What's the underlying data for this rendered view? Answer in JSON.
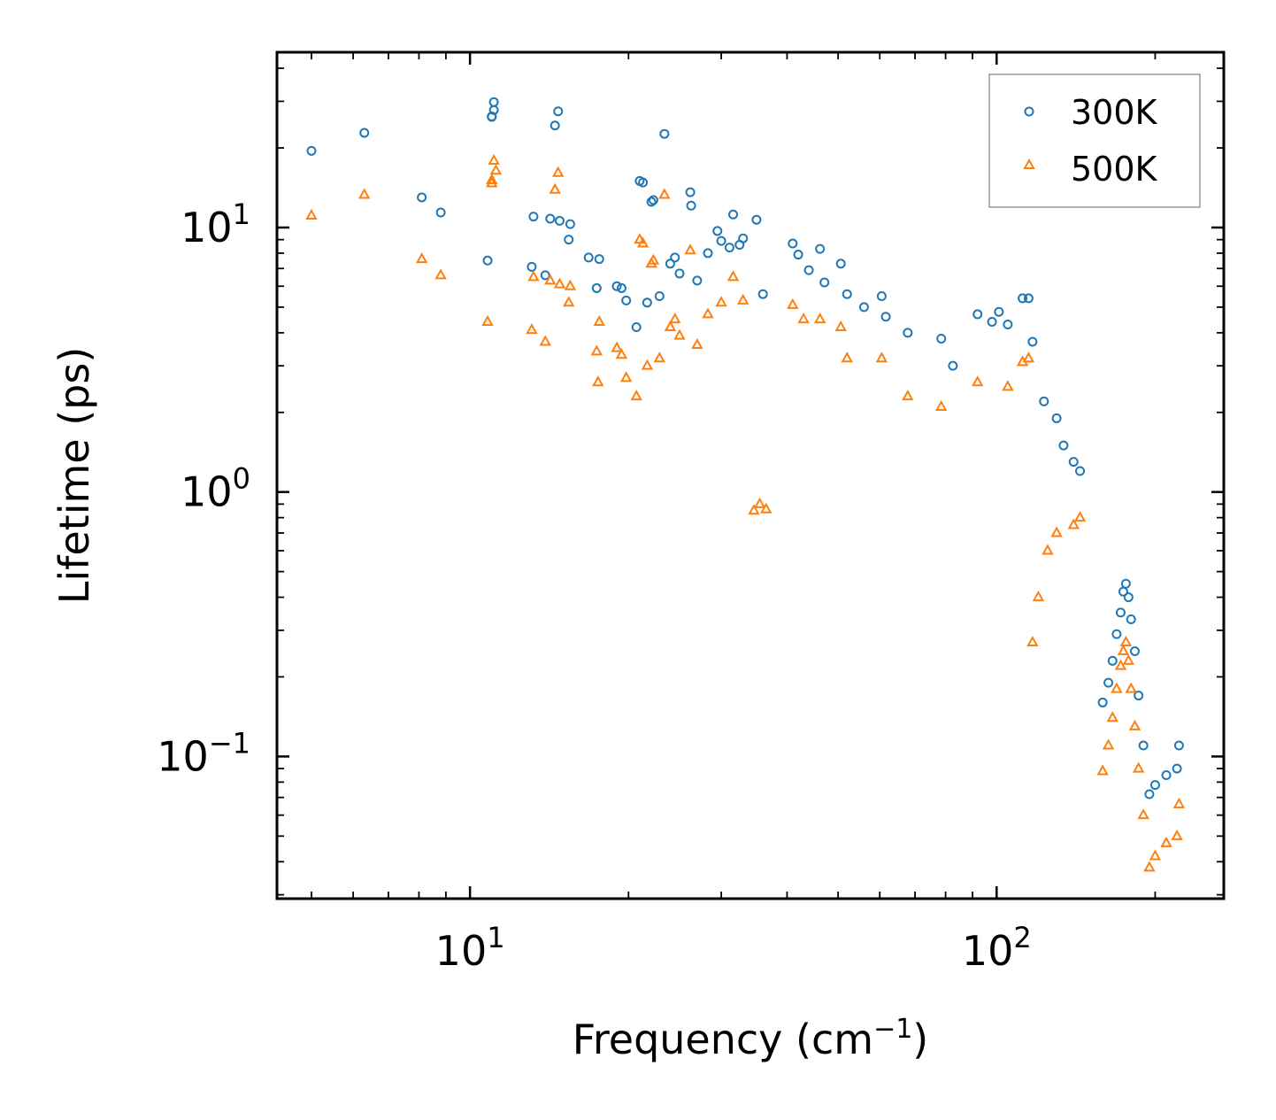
{
  "chart_data": {
    "type": "scatter",
    "xscale": "log",
    "yscale": "log",
    "xlabel": "Frequency (cm",
    "xlabel_sup": "−1",
    "xlabel_tail": ")",
    "ylabel": "Lifetime (ps)",
    "xlim": [
      4.3,
      270
    ],
    "ylim": [
      0.029,
      46
    ],
    "x_ticks": [
      {
        "value": 10,
        "base": "10",
        "exp": "1"
      },
      {
        "value": 100,
        "base": "10",
        "exp": "2"
      }
    ],
    "y_ticks": [
      {
        "value": 10,
        "base": "10",
        "exp": "1"
      },
      {
        "value": 1,
        "base": "10",
        "exp": "0"
      },
      {
        "value": 0.1,
        "base": "10",
        "exp": "−1"
      }
    ],
    "legend_position": "top-right",
    "series": [
      {
        "name": "300K",
        "marker": "circle",
        "color": "#1f77b4",
        "points": [
          [
            5.0,
            19.5
          ],
          [
            6.3,
            22.8
          ],
          [
            8.1,
            13.0
          ],
          [
            8.8,
            11.4
          ],
          [
            10.8,
            7.5
          ],
          [
            11.0,
            26.2
          ],
          [
            11.1,
            29.8
          ],
          [
            11.1,
            27.8
          ],
          [
            11.0,
            26.3
          ],
          [
            13.1,
            7.1
          ],
          [
            13.2,
            11.0
          ],
          [
            13.9,
            6.6
          ],
          [
            14.2,
            10.8
          ],
          [
            14.5,
            24.3
          ],
          [
            14.7,
            27.5
          ],
          [
            14.8,
            10.6
          ],
          [
            15.4,
            9.0
          ],
          [
            15.5,
            10.3
          ],
          [
            16.8,
            7.7
          ],
          [
            17.4,
            5.9
          ],
          [
            17.6,
            7.6
          ],
          [
            19.0,
            6.0
          ],
          [
            19.4,
            5.9
          ],
          [
            19.8,
            5.3
          ],
          [
            20.7,
            4.2
          ],
          [
            21.0,
            15.0
          ],
          [
            21.3,
            14.8
          ],
          [
            21.7,
            5.2
          ],
          [
            22.1,
            12.5
          ],
          [
            22.3,
            12.7
          ],
          [
            22.9,
            5.5
          ],
          [
            23.4,
            22.6
          ],
          [
            24.0,
            7.3
          ],
          [
            24.5,
            7.7
          ],
          [
            25.0,
            6.7
          ],
          [
            26.2,
            13.6
          ],
          [
            26.3,
            12.1
          ],
          [
            27.0,
            6.3
          ],
          [
            28.3,
            8.0
          ],
          [
            29.5,
            9.7
          ],
          [
            30.0,
            8.9
          ],
          [
            31.1,
            8.4
          ],
          [
            31.6,
            11.2
          ],
          [
            32.5,
            8.6
          ],
          [
            33.0,
            9.1
          ],
          [
            35.0,
            10.7
          ],
          [
            36.0,
            5.6
          ],
          [
            41.0,
            8.7
          ],
          [
            42.0,
            7.9
          ],
          [
            44.0,
            6.9
          ],
          [
            46.2,
            8.3
          ],
          [
            47.1,
            6.2
          ],
          [
            50.6,
            7.3
          ],
          [
            52.0,
            5.6
          ],
          [
            56.0,
            5.0
          ],
          [
            60.5,
            5.5
          ],
          [
            61.6,
            4.6
          ],
          [
            67.8,
            4.0
          ],
          [
            78.5,
            3.8
          ],
          [
            82.6,
            3.0
          ],
          [
            92.0,
            4.7
          ],
          [
            98.0,
            4.4
          ],
          [
            101.0,
            4.8
          ],
          [
            105.0,
            4.3
          ],
          [
            112.0,
            5.4
          ],
          [
            115.0,
            5.4
          ],
          [
            117.0,
            3.7
          ],
          [
            123.0,
            2.2
          ],
          [
            130.0,
            1.9
          ],
          [
            134.0,
            1.5
          ],
          [
            140.0,
            1.3
          ],
          [
            144.0,
            1.2
          ],
          [
            159.0,
            0.16
          ],
          [
            163.0,
            0.19
          ],
          [
            166.0,
            0.23
          ],
          [
            169.0,
            0.29
          ],
          [
            172.0,
            0.35
          ],
          [
            174.0,
            0.42
          ],
          [
            176.0,
            0.45
          ],
          [
            178.0,
            0.4
          ],
          [
            180.0,
            0.33
          ],
          [
            183.0,
            0.25
          ],
          [
            186.0,
            0.17
          ],
          [
            190.0,
            0.11
          ],
          [
            195.0,
            0.072
          ],
          [
            200.0,
            0.078
          ],
          [
            210.0,
            0.085
          ],
          [
            220.0,
            0.09
          ],
          [
            222.0,
            0.11
          ]
        ]
      },
      {
        "name": "500K",
        "marker": "triangle",
        "color": "#ff7f0e",
        "points": [
          [
            5.0,
            11.1
          ],
          [
            6.3,
            13.3
          ],
          [
            8.1,
            7.6
          ],
          [
            8.8,
            6.6
          ],
          [
            10.8,
            4.4
          ],
          [
            11.0,
            15.1
          ],
          [
            11.1,
            17.9
          ],
          [
            11.2,
            16.4
          ],
          [
            11.0,
            14.7
          ],
          [
            13.1,
            4.1
          ],
          [
            13.2,
            6.5
          ],
          [
            13.9,
            3.7
          ],
          [
            14.2,
            6.3
          ],
          [
            14.5,
            13.9
          ],
          [
            14.7,
            16.1
          ],
          [
            14.8,
            6.1
          ],
          [
            15.4,
            5.2
          ],
          [
            15.5,
            6.0
          ],
          [
            17.4,
            3.4
          ],
          [
            17.6,
            4.4
          ],
          [
            17.5,
            2.6
          ],
          [
            19.0,
            3.5
          ],
          [
            19.4,
            3.3
          ],
          [
            19.8,
            2.7
          ],
          [
            20.7,
            2.3
          ],
          [
            21.0,
            9.0
          ],
          [
            21.3,
            8.7
          ],
          [
            21.7,
            3.0
          ],
          [
            22.1,
            7.3
          ],
          [
            22.3,
            7.5
          ],
          [
            22.9,
            3.2
          ],
          [
            23.4,
            13.3
          ],
          [
            24.0,
            4.2
          ],
          [
            24.5,
            4.5
          ],
          [
            25.0,
            3.9
          ],
          [
            26.2,
            8.2
          ],
          [
            27.0,
            3.6
          ],
          [
            28.3,
            4.7
          ],
          [
            30.0,
            5.2
          ],
          [
            31.6,
            6.5
          ],
          [
            33.0,
            5.3
          ],
          [
            34.6,
            0.85
          ],
          [
            35.5,
            0.9
          ],
          [
            36.5,
            0.86
          ],
          [
            41.0,
            5.1
          ],
          [
            43.0,
            4.5
          ],
          [
            46.2,
            4.5
          ],
          [
            50.6,
            4.2
          ],
          [
            52.0,
            3.2
          ],
          [
            60.5,
            3.2
          ],
          [
            67.8,
            2.3
          ],
          [
            78.5,
            2.1
          ],
          [
            92.0,
            2.6
          ],
          [
            105.0,
            2.5
          ],
          [
            112.0,
            3.1
          ],
          [
            115.0,
            3.2
          ],
          [
            117.0,
            0.27
          ],
          [
            120.0,
            0.4
          ],
          [
            125.0,
            0.6
          ],
          [
            130.0,
            0.7
          ],
          [
            140.0,
            0.75
          ],
          [
            144.0,
            0.8
          ],
          [
            159.0,
            0.088
          ],
          [
            163.0,
            0.11
          ],
          [
            166.0,
            0.14
          ],
          [
            169.0,
            0.18
          ],
          [
            172.0,
            0.22
          ],
          [
            174.0,
            0.25
          ],
          [
            176.0,
            0.27
          ],
          [
            178.0,
            0.23
          ],
          [
            180.0,
            0.18
          ],
          [
            183.0,
            0.13
          ],
          [
            186.0,
            0.09
          ],
          [
            190.0,
            0.06
          ],
          [
            195.0,
            0.038
          ],
          [
            200.0,
            0.042
          ],
          [
            210.0,
            0.047
          ],
          [
            220.0,
            0.05
          ],
          [
            222.0,
            0.066
          ]
        ]
      }
    ]
  }
}
